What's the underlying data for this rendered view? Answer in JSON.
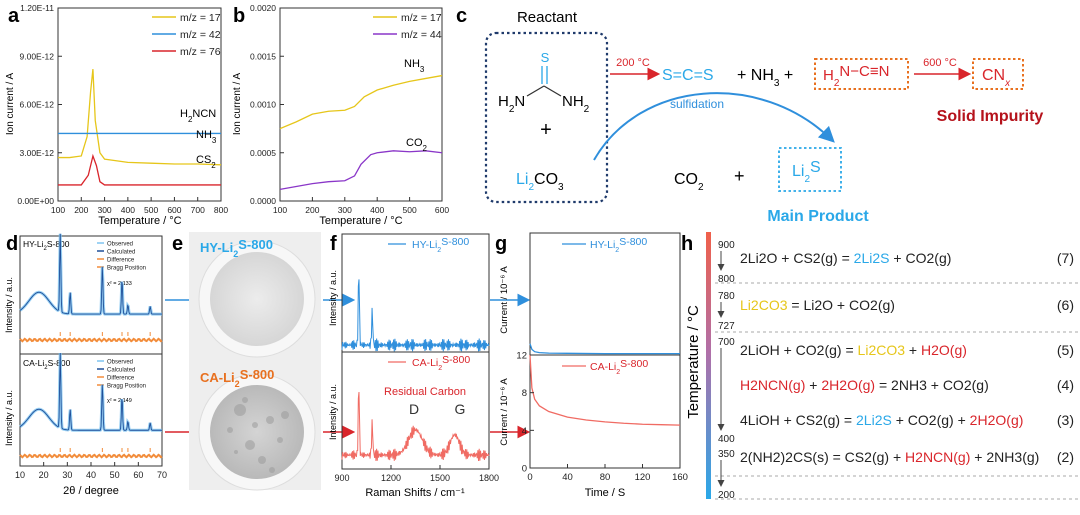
{
  "colors": {
    "yellow": "#e6c61a",
    "blue": "#2f8fdc",
    "red": "#d9252b",
    "purple": "#8a36c8",
    "cyan": "#2aa8e8",
    "orange": "#e8701f",
    "darkred": "#b5121b",
    "navy": "#1f3a6b"
  },
  "a": {
    "letter": "a",
    "ylabel": "Ion current / A",
    "xlabel": "Temperature / °C",
    "yticks": [
      "1.20E-11",
      "9.00E-12",
      "6.00E-12",
      "3.00E-12",
      "0.00E+00"
    ],
    "xticks": [
      "100",
      "200",
      "300",
      "400",
      "500",
      "600",
      "700",
      "800"
    ],
    "legend": [
      {
        "name": "m/z = 17",
        "color": "#e6c61a"
      },
      {
        "name": "m/z = 42",
        "color": "#2f8fdc"
      },
      {
        "name": "m/z = 76",
        "color": "#d9252b"
      }
    ],
    "labels": {
      "h2ncn": "H2NCN",
      "nh3": "NH3",
      "cs2": "CS2"
    }
  },
  "b": {
    "letter": "b",
    "ylabel": "Ion current / A",
    "xlabel": "Temperature / °C",
    "yticks": [
      "0.0020",
      "0.0015",
      "0.0010",
      "0.0005",
      "0.0000"
    ],
    "xticks": [
      "100",
      "200",
      "300",
      "400",
      "500",
      "600"
    ],
    "legend": [
      {
        "name": "m/z = 17",
        "color": "#e6c61a"
      },
      {
        "name": "m/z = 44",
        "color": "#8a36c8"
      }
    ],
    "labels": {
      "nh3": "NH3",
      "co2": "CO2"
    }
  },
  "chart_data": [
    {
      "type": "line",
      "panel": "a",
      "xlabel": "Temperature / °C",
      "ylabel": "Ion current / A",
      "xlim": [
        100,
        800
      ],
      "ylim": [
        0,
        1.2e-11
      ],
      "series": [
        {
          "name": "m/z = 17",
          "x": [
            100,
            150,
            200,
            225,
            240,
            250,
            260,
            280,
            300,
            350,
            400,
            500,
            600,
            700,
            800
          ],
          "values": [
            2.7e-12,
            2.7e-12,
            2.8e-12,
            4e-12,
            6.8e-12,
            8.2e-12,
            5e-12,
            3e-12,
            2.6e-12,
            2.5e-12,
            2.4e-12,
            2.35e-12,
            2.3e-12,
            2.3e-12,
            2.25e-12
          ]
        },
        {
          "name": "m/z = 42",
          "x": [
            100,
            800
          ],
          "values": [
            4.2e-12,
            4.2e-12
          ]
        },
        {
          "name": "m/z = 76",
          "x": [
            100,
            200,
            230,
            250,
            265,
            280,
            300,
            400,
            600,
            800
          ],
          "values": [
            1e-12,
            1e-12,
            1.6e-12,
            2.8e-12,
            2.2e-12,
            1.2e-12,
            1e-12,
            1e-12,
            1e-12,
            1e-12
          ]
        }
      ]
    },
    {
      "type": "line",
      "panel": "b",
      "xlabel": "Temperature / °C",
      "ylabel": "Ion current / A",
      "xlim": [
        100,
        600
      ],
      "ylim": [
        0,
        0.002
      ],
      "series": [
        {
          "name": "m/z = 17",
          "x": [
            100,
            150,
            200,
            250,
            300,
            330,
            360,
            400,
            450,
            500,
            550,
            600
          ],
          "values": [
            0.00075,
            0.00082,
            0.0009,
            0.00093,
            0.00094,
            0.00098,
            0.00108,
            0.00115,
            0.0012,
            0.00124,
            0.00127,
            0.0013
          ]
        },
        {
          "name": "m/z = 44",
          "x": [
            100,
            150,
            200,
            250,
            300,
            330,
            350,
            380,
            400,
            450,
            500,
            550,
            600
          ],
          "values": [
            0.00012,
            0.00015,
            0.00018,
            0.0002,
            0.00021,
            0.00026,
            0.00038,
            0.00048,
            0.0005,
            0.00052,
            0.00051,
            0.00052,
            0.0005
          ]
        }
      ]
    },
    {
      "type": "line",
      "panel": "g",
      "xlabel": "Time / S",
      "ylabel": "Current / 10⁻⁶ A",
      "xlim": [
        0,
        160
      ],
      "ylim": [
        0,
        12
      ],
      "series": [
        {
          "name": "HY-Li2S-800",
          "x": [
            0,
            2,
            5,
            10,
            20,
            40,
            80,
            160
          ],
          "values": [
            1.2,
            0.6,
            0.35,
            0.25,
            0.2,
            0.18,
            0.15,
            0.15
          ]
        },
        {
          "name": "CA-Li2S-800",
          "x": [
            0,
            2,
            5,
            10,
            20,
            40,
            60,
            80,
            100,
            120,
            140,
            160
          ],
          "values": [
            12,
            8.5,
            7.3,
            6.6,
            6.0,
            5.4,
            5.1,
            4.9,
            4.75,
            4.65,
            4.6,
            4.55
          ]
        }
      ]
    }
  ],
  "c": {
    "letter": "c",
    "reactant": "Reactant",
    "s": "S",
    "h2n": "H2N",
    "nh2": "NH2",
    "plus": "+",
    "li2co3": "Li2CO3",
    "t200": "200 °C",
    "scs": "S=C=S",
    "nh3": "NH3",
    "h2ncn": "H2N−C≡N",
    "t600": "600 °C",
    "cnx": "CNx",
    "solid": "Solid Impurity",
    "sulfidation": "sulfidation",
    "co2": "CO2",
    "li2s": "Li2S",
    "main": "Main Product"
  },
  "d": {
    "letter": "d",
    "xlabel": "2θ / degree",
    "ylabel": "Intensity / a.u.",
    "xticks": [
      "10",
      "20",
      "30",
      "40",
      "50",
      "60",
      "70"
    ],
    "top": {
      "name": "HY-Li2S-800",
      "chi": "χ² = 2.133"
    },
    "bottom": {
      "name": "CA-Li2S-800",
      "chi": "χ² = 2.149"
    },
    "legend": [
      "Observed",
      "Calculated",
      "Difference",
      "Bragg Position"
    ]
  },
  "e": {
    "letter": "e",
    "top": "HY-Li2S-800",
    "bottom": "CA-Li2S-800"
  },
  "f": {
    "letter": "f",
    "xlabel": "Raman Shifts / cm⁻¹",
    "ylabel": "Intensity / a.u.",
    "xticks": [
      "900",
      "1200",
      "1500",
      "1800"
    ],
    "top": "HY-Li2S-800",
    "bottom": "CA-Li2S-800",
    "residual": "Residual Carbon",
    "d": "D",
    "g": "G"
  },
  "g": {
    "letter": "g",
    "xlabel": "Time / S",
    "ylabel": "Current / 10⁻⁶ A",
    "xticks": [
      "0",
      "40",
      "80",
      "120",
      "160"
    ],
    "top": "HY-Li2S-800",
    "bottom": "CA-Li2S-800",
    "ytop": [
      "12",
      "8",
      "4",
      "0"
    ]
  },
  "h": {
    "letter": "h",
    "axis": "Temperature / °C",
    "temps": [
      "900",
      "800",
      "780",
      "727",
      "700",
      "400",
      "350",
      "200"
    ],
    "eqs": [
      {
        "num": "(7)",
        "parts": [
          [
            "2Li2O + CS2(g) = ",
            "k"
          ],
          [
            "2Li2S",
            "c"
          ],
          [
            " + CO2(g)",
            "k"
          ]
        ]
      },
      {
        "num": "(6)",
        "parts": [
          [
            "Li2CO3",
            "y"
          ],
          [
            " = Li2O + CO2(g)",
            "k"
          ]
        ]
      },
      {
        "num": "(5)",
        "parts": [
          [
            "2LiOH + CO2(g) = ",
            "k"
          ],
          [
            "Li2CO3",
            "y"
          ],
          [
            " + ",
            "k"
          ],
          [
            "H2O(g)",
            "r"
          ]
        ]
      },
      {
        "num": "(4)",
        "parts": [
          [
            "H2NCN(g)",
            "r"
          ],
          [
            " + ",
            "k"
          ],
          [
            "2H2O(g)",
            "r"
          ],
          [
            " = 2NH3 + CO2(g)",
            "k"
          ]
        ]
      },
      {
        "num": "(3)",
        "parts": [
          [
            "4LiOH + CS2(g) = ",
            "k"
          ],
          [
            "2Li2S",
            "c"
          ],
          [
            " + CO2(g) + ",
            "k"
          ],
          [
            "2H2O(g)",
            "r"
          ]
        ]
      },
      {
        "num": "(2)",
        "parts": [
          [
            "2(NH2)2CS(s) = CS2(g) + ",
            "k"
          ],
          [
            "H2NCN(g)",
            "r"
          ],
          [
            " + 2NH3(g)",
            "k"
          ]
        ]
      }
    ]
  }
}
